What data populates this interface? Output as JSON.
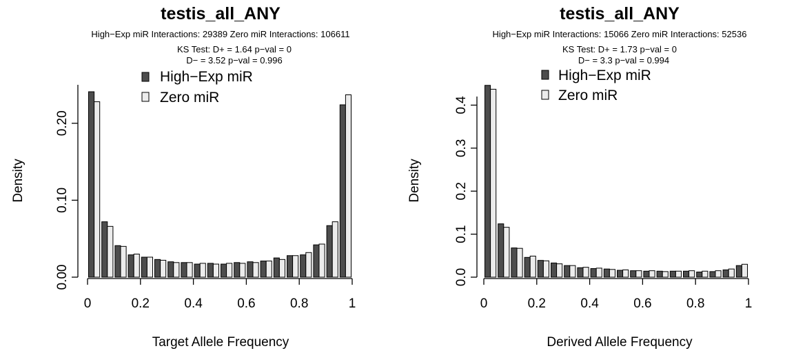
{
  "colors": {
    "high_exp": "#4d4d4d",
    "zero": "#ececec",
    "edge": "#000000"
  },
  "chart_data": [
    {
      "type": "bar",
      "title": "testis_all_ANY",
      "subtitle_1": "High−Exp miR Interactions: 29389    Zero miR Interactions: 106611",
      "subtitle_2": "KS Test:  D+ =  1.64  p−val = 0",
      "subtitle_3": "D− =  3.52  p−val = 0.996",
      "xlabel": "Target Allele Frequency",
      "ylabel": "Density",
      "xlim": [
        0,
        1
      ],
      "ylim": [
        0,
        0.25
      ],
      "x_ticks": [
        "0",
        "0.2",
        "0.4",
        "0.6",
        "0.8",
        "1"
      ],
      "y_ticks": [
        "0.00",
        "0.10",
        "0.20"
      ],
      "legend_position": "top-center",
      "categories": [
        "0.025",
        "0.075",
        "0.125",
        "0.175",
        "0.225",
        "0.275",
        "0.325",
        "0.375",
        "0.425",
        "0.475",
        "0.525",
        "0.575",
        "0.625",
        "0.675",
        "0.725",
        "0.775",
        "0.825",
        "0.875",
        "0.925",
        "0.975"
      ],
      "series": [
        {
          "name": "High−Exp miR",
          "values": [
            0.241,
            0.072,
            0.041,
            0.029,
            0.026,
            0.023,
            0.02,
            0.019,
            0.017,
            0.018,
            0.017,
            0.019,
            0.02,
            0.021,
            0.025,
            0.028,
            0.029,
            0.042,
            0.067,
            0.224
          ]
        },
        {
          "name": "Zero miR",
          "values": [
            0.228,
            0.066,
            0.04,
            0.03,
            0.026,
            0.022,
            0.019,
            0.019,
            0.018,
            0.017,
            0.018,
            0.018,
            0.019,
            0.021,
            0.023,
            0.028,
            0.032,
            0.043,
            0.072,
            0.237
          ]
        }
      ]
    },
    {
      "type": "bar",
      "title": "testis_all_ANY",
      "subtitle_1": "High−Exp miR Interactions: 15066    Zero miR Interactions: 52536",
      "subtitle_2": "KS Test:  D+ =  1.73  p−val = 0",
      "subtitle_3": "D− =  3.3  p−val = 0.994",
      "xlabel": "Derived Allele Frequency",
      "ylabel": "Density",
      "xlim": [
        0,
        1
      ],
      "ylim": [
        0,
        0.45
      ],
      "x_ticks": [
        "0",
        "0.2",
        "0.4",
        "0.6",
        "0.8",
        "1"
      ],
      "y_ticks": [
        "0.0",
        "0.1",
        "0.2",
        "0.3",
        "0.4"
      ],
      "legend_position": "top-center",
      "categories": [
        "0.025",
        "0.075",
        "0.125",
        "0.175",
        "0.225",
        "0.275",
        "0.325",
        "0.375",
        "0.425",
        "0.475",
        "0.525",
        "0.575",
        "0.625",
        "0.675",
        "0.725",
        "0.775",
        "0.825",
        "0.875",
        "0.925",
        "0.975"
      ],
      "series": [
        {
          "name": "High−Exp miR",
          "values": [
            0.446,
            0.124,
            0.068,
            0.046,
            0.039,
            0.033,
            0.027,
            0.022,
            0.02,
            0.019,
            0.016,
            0.015,
            0.014,
            0.014,
            0.014,
            0.014,
            0.012,
            0.013,
            0.017,
            0.027
          ]
        },
        {
          "name": "Zero miR",
          "values": [
            0.437,
            0.116,
            0.067,
            0.049,
            0.038,
            0.031,
            0.027,
            0.023,
            0.021,
            0.018,
            0.017,
            0.015,
            0.015,
            0.013,
            0.014,
            0.015,
            0.014,
            0.015,
            0.019,
            0.03
          ]
        }
      ]
    }
  ]
}
